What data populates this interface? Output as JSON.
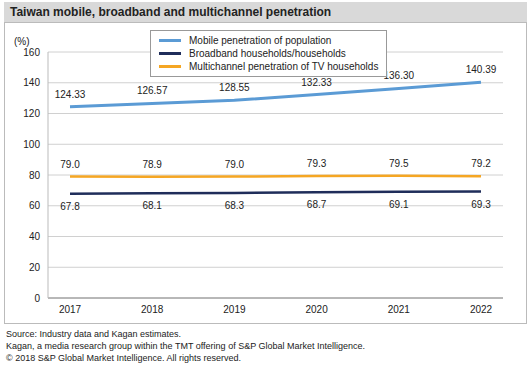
{
  "chart_data": {
    "type": "line",
    "title": "Taiwan mobile, broadband and multichannel penetration",
    "y_label": "(%)",
    "categories": [
      "2017",
      "2018",
      "2019",
      "2020",
      "2021",
      "2022"
    ],
    "series": [
      {
        "name": "Mobile penetration of population",
        "color": "#5b9bd5",
        "values": [
          124.33,
          126.57,
          128.55,
          132.33,
          136.3,
          140.39
        ],
        "value_labels": [
          "124.33",
          "126.57",
          "128.55",
          "132.33",
          "136.30",
          "140.39"
        ]
      },
      {
        "name": "Broadband households/households",
        "color": "#1f2d5a",
        "values": [
          67.8,
          68.1,
          68.3,
          68.7,
          69.1,
          69.3
        ],
        "value_labels": [
          "67.8",
          "68.1",
          "68.3",
          "68.7",
          "69.1",
          "69.3"
        ]
      },
      {
        "name": "Multichannel penetration of TV households",
        "color": "#f5a623",
        "values": [
          79.0,
          78.9,
          79.0,
          79.3,
          79.5,
          79.2
        ],
        "value_labels": [
          "79.0",
          "78.9",
          "79.0",
          "79.3",
          "79.5",
          "79.2"
        ]
      }
    ],
    "ylim": [
      0,
      160
    ],
    "yticks": [
      0,
      20,
      40,
      60,
      80,
      100,
      120,
      140,
      160
    ],
    "grid": true,
    "legend": "upper center",
    "data_labels": true,
    "footnotes": [
      "Source: Industry data and Kagan estimates.",
      "Kagan, a media research group within the TMT offering of S&P Global Market Intelligence.",
      "© 2018 S&P Global Market Intelligence. All rights reserved."
    ]
  }
}
